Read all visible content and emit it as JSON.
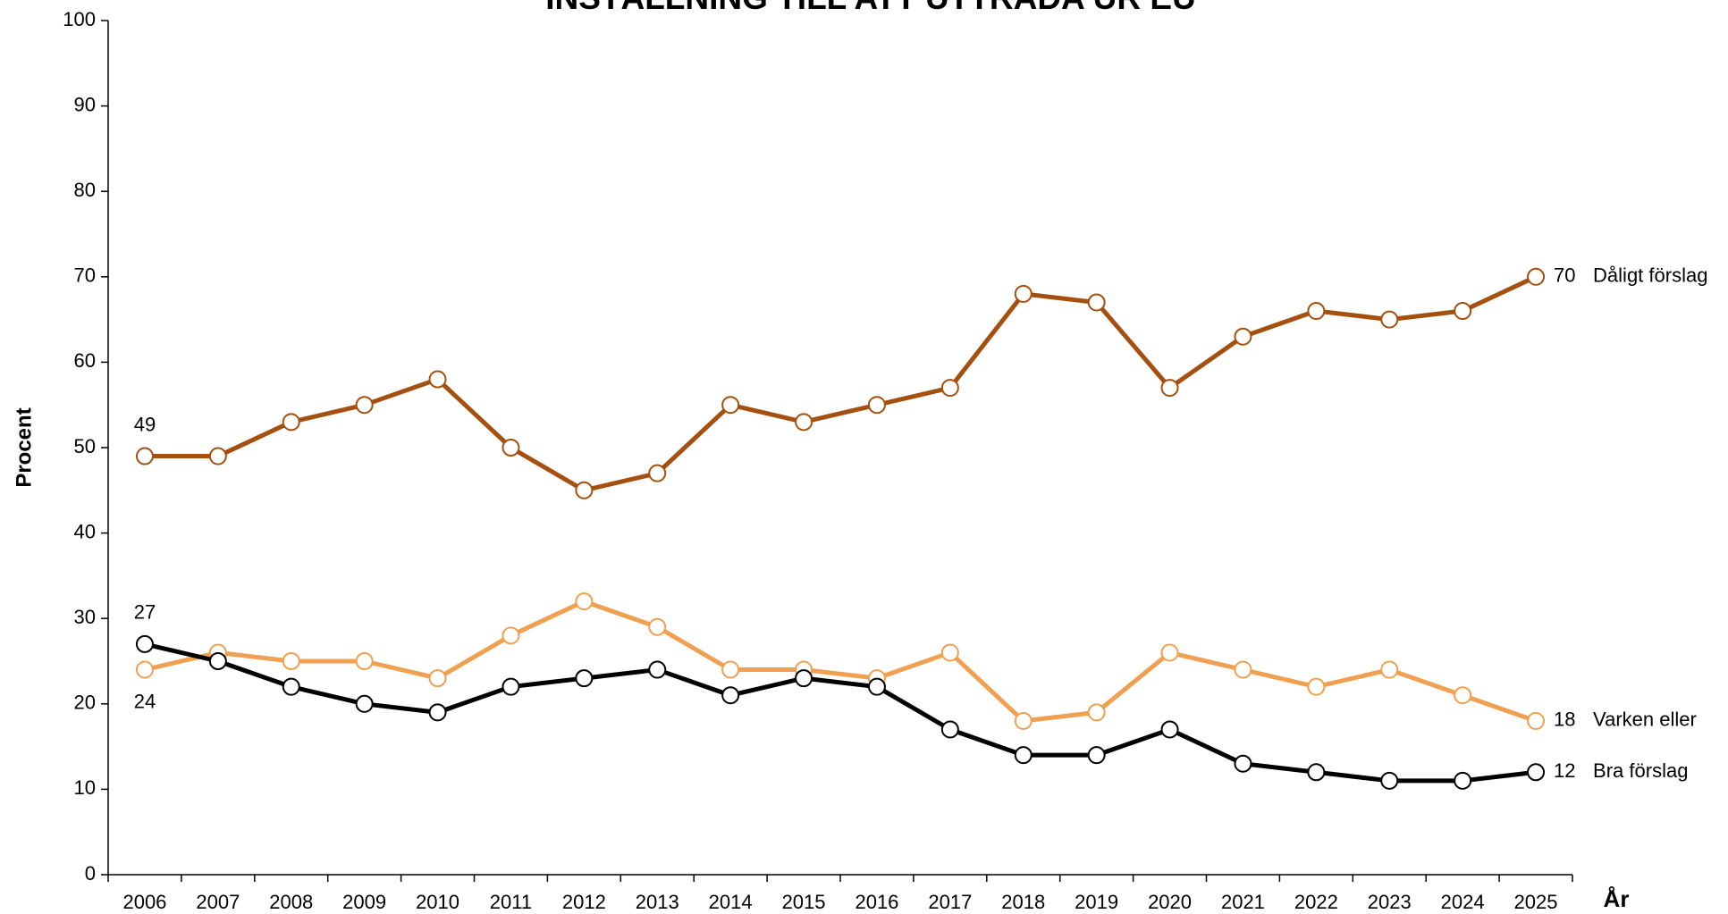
{
  "chart_data": {
    "type": "line",
    "title": "INSTÄLLNING TILL ATT UTTRÄDA UR EU",
    "y_label": "Procent",
    "x_label": "År",
    "categories": [
      "2006",
      "2007",
      "2008",
      "2009",
      "2010",
      "2011",
      "2012",
      "2013",
      "2014",
      "2015",
      "2016",
      "2017",
      "2018",
      "2019",
      "2020",
      "2021",
      "2022",
      "2023",
      "2024",
      "2025"
    ],
    "series": [
      {
        "name": "Dåligt förslag",
        "color": "#a5500f",
        "values": [
          49,
          49,
          53,
          55,
          58,
          50,
          45,
          47,
          55,
          53,
          55,
          57,
          68,
          67,
          57,
          63,
          66,
          65,
          66,
          70
        ]
      },
      {
        "name": "Varken eller",
        "color": "#f0a050",
        "values": [
          24,
          26,
          25,
          25,
          23,
          28,
          32,
          29,
          24,
          24,
          23,
          26,
          18,
          19,
          26,
          24,
          22,
          24,
          21,
          18
        ]
      },
      {
        "name": "Bra förslag",
        "color": "#000000",
        "values": [
          27,
          25,
          22,
          20,
          19,
          22,
          23,
          24,
          21,
          23,
          22,
          17,
          14,
          14,
          17,
          13,
          12,
          11,
          11,
          12
        ]
      }
    ],
    "ylim": [
      0,
      100
    ],
    "yticks": [
      0,
      10,
      20,
      30,
      40,
      50,
      60,
      70,
      80,
      90,
      100
    ],
    "grid": false
  }
}
